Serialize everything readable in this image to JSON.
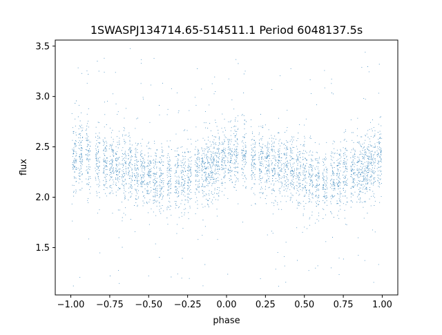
{
  "chart_data": {
    "type": "scatter",
    "title": "1SWASPJ134714.65-514511.1 Period 6048137.5s",
    "xlabel": "phase",
    "ylabel": "flux",
    "xlim": [
      -1.1,
      1.1
    ],
    "ylim": [
      1.03,
      3.56
    ],
    "xticks": [
      -1.0,
      -0.75,
      -0.5,
      -0.25,
      0.0,
      0.25,
      0.5,
      0.75,
      1.0
    ],
    "xtick_labels": [
      "−1.00",
      "−0.75",
      "−0.50",
      "−0.25",
      "0.00",
      "0.25",
      "0.50",
      "0.75",
      "1.00"
    ],
    "yticks": [
      1.5,
      2.0,
      2.5,
      3.0,
      3.5
    ],
    "ytick_labels": [
      "1.5",
      "2.0",
      "2.5",
      "3.0",
      "3.5"
    ],
    "grid": false,
    "marker_color": "#1f77b4",
    "phase_range": [
      -1.0,
      1.0
    ],
    "observation_clusters_phase": [
      -0.98,
      -0.94,
      -0.89,
      -0.83,
      -0.78,
      -0.74,
      -0.7,
      -0.66,
      -0.62,
      -0.58,
      -0.54,
      -0.5,
      -0.46,
      -0.42,
      -0.37,
      -0.32,
      -0.28,
      -0.24,
      -0.19,
      -0.15,
      -0.12,
      -0.09,
      -0.06,
      -0.02,
      0.02,
      0.06,
      0.11,
      0.17,
      0.22,
      0.26,
      0.3,
      0.34,
      0.38,
      0.42,
      0.46,
      0.5,
      0.54,
      0.58,
      0.63,
      0.68,
      0.72,
      0.76,
      0.81,
      0.85,
      0.88,
      0.91,
      0.94,
      0.98
    ],
    "mean_flux_curve": {
      "phase": [
        0.0,
        0.05,
        0.1,
        0.15,
        0.2,
        0.25,
        0.3,
        0.35,
        0.4,
        0.45,
        0.5,
        0.55,
        0.6,
        0.65,
        0.7,
        0.75,
        0.8,
        0.85,
        0.9,
        0.95,
        1.0
      ],
      "flux": [
        2.4,
        2.42,
        2.41,
        2.38,
        2.36,
        2.33,
        2.31,
        2.29,
        2.27,
        2.25,
        2.22,
        2.18,
        2.15,
        2.16,
        2.2,
        2.22,
        2.23,
        2.25,
        2.3,
        2.36,
        2.4
      ]
    },
    "flux_scatter_sigma": 0.17
  }
}
